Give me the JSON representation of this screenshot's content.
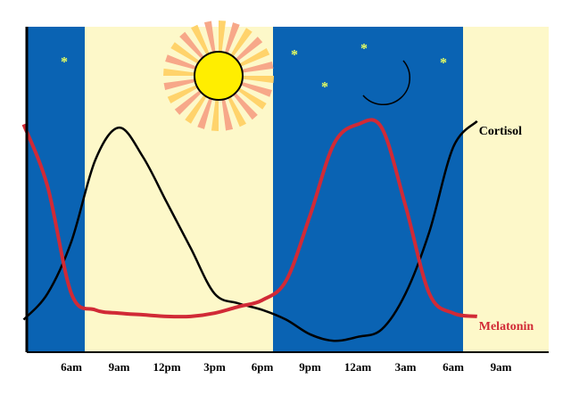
{
  "chart_data": {
    "type": "line",
    "categories": [
      null,
      null,
      "6am",
      null,
      "9am",
      null,
      "12pm",
      null,
      "3pm",
      null,
      "6pm",
      null,
      "9pm",
      null,
      "12am",
      null,
      "3am",
      null,
      "6am",
      null,
      "9am",
      null,
      null
    ],
    "ylim": [
      0,
      100
    ],
    "series": [
      {
        "name": "Cortisol",
        "color": "#000000",
        "values": [
          10,
          18,
          34,
          59,
          69,
          60,
          46,
          32,
          18,
          15,
          13,
          10,
          5.5,
          3.5,
          4.7,
          7,
          18,
          37,
          63,
          71,
          null,
          null,
          null
        ]
      },
      {
        "name": "Melatonin",
        "color": "#d12a36",
        "values": [
          70,
          51,
          18,
          13,
          12,
          11.5,
          11,
          11,
          12,
          14,
          16,
          22,
          42,
          64,
          70,
          69,
          45,
          18,
          12,
          11,
          null,
          null,
          null
        ]
      }
    ]
  }
}
